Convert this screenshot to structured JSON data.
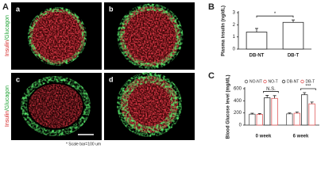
{
  "figure": {
    "panel_label": "A",
    "image_labels": [
      "a",
      "b",
      "c",
      "d"
    ],
    "stain_label": {
      "parts": [
        "Insulin",
        "/Glucagon"
      ]
    },
    "scale_note": "* Scale bar=100 um"
  },
  "chart_data": [
    {
      "type": "bar",
      "panel_label": "B",
      "y_label": "Plasma insulin (ng/dL)",
      "categories": [
        "DB-NT",
        "DB-T"
      ],
      "values": [
        1.4,
        2.2
      ],
      "errors": [
        0.3,
        0.2
      ],
      "color": "#ffffff",
      "ylim": [
        0,
        3
      ],
      "yticks": [
        0,
        1,
        2,
        3
      ],
      "annotations": [
        "*"
      ]
    },
    {
      "type": "bar",
      "panel_label": "C",
      "y_label": "Blood Glucose level (mg/dL)",
      "categories": [
        "0 week",
        "6 week"
      ],
      "series": [
        {
          "name": "NO-NT",
          "color": "#555555",
          "values": [
            180,
            185
          ],
          "errors": [
            15,
            15
          ]
        },
        {
          "name": "NO-T",
          "color": "#e05a5a",
          "values": [
            175,
            195
          ],
          "errors": [
            15,
            20
          ]
        },
        {
          "name": "DB-NT",
          "color": "#333333",
          "values": [
            450,
            500
          ],
          "errors": [
            40,
            35
          ]
        },
        {
          "name": "DB-T",
          "color": "#e05a5a",
          "values": [
            440,
            350
          ],
          "errors": [
            45,
            30
          ]
        }
      ],
      "ylim": [
        0,
        600
      ],
      "yticks": [
        0,
        200,
        400,
        600
      ],
      "annotations": [
        "N.S.",
        "***"
      ]
    }
  ]
}
